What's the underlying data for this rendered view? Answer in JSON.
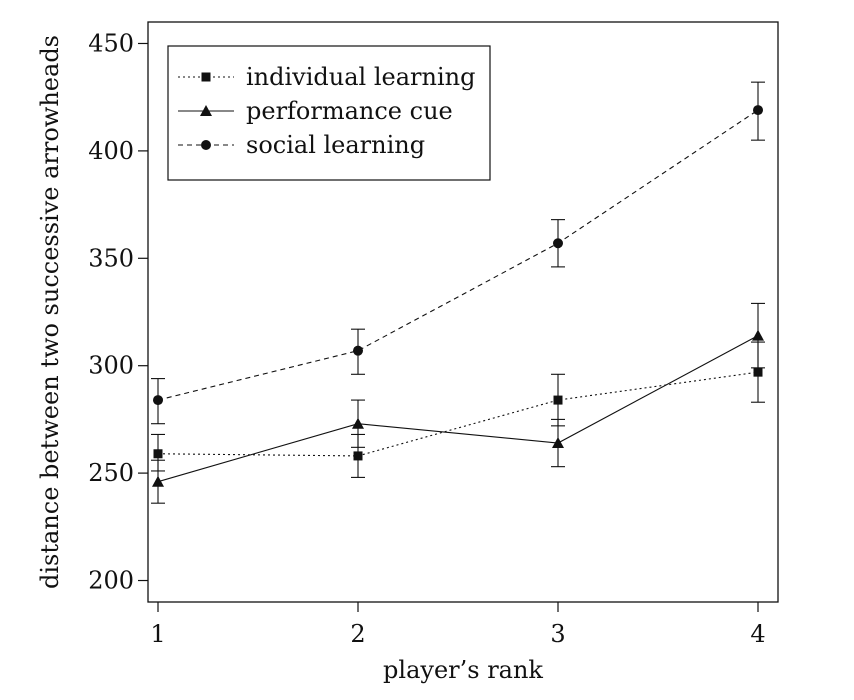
{
  "chart_data": {
    "type": "line",
    "xlabel": "player’s rank",
    "ylabel": "distance between two successive arrowheads",
    "x": [
      1,
      2,
      3,
      4
    ],
    "xlim": [
      0.95,
      4.1
    ],
    "ylim": [
      190,
      460
    ],
    "xticks": [
      1,
      2,
      3,
      4
    ],
    "yticks": [
      200,
      250,
      300,
      350,
      400,
      450
    ],
    "grid": false,
    "legend_position": "top-left",
    "series": [
      {
        "name": "individual learning",
        "marker": "square",
        "line_style": "dotted",
        "values": [
          259,
          258,
          284,
          297
        ],
        "error_low": [
          251,
          248,
          272,
          283
        ],
        "error_high": [
          268,
          268,
          296,
          311
        ]
      },
      {
        "name": "performance cue",
        "marker": "triangle",
        "line_style": "solid",
        "values": [
          246,
          273,
          264,
          314
        ],
        "error_low": [
          236,
          262,
          253,
          299
        ],
        "error_high": [
          256,
          284,
          275,
          329
        ]
      },
      {
        "name": "social learning",
        "marker": "circle",
        "line_style": "dashed",
        "values": [
          284,
          307,
          357,
          419
        ],
        "error_low": [
          273,
          296,
          346,
          405
        ],
        "error_high": [
          294,
          317,
          368,
          432
        ]
      }
    ]
  }
}
